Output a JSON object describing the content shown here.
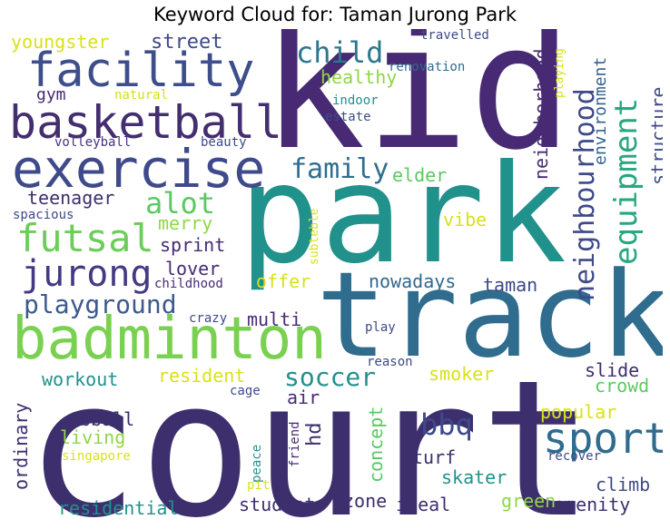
{
  "title": "Keyword Cloud for: Taman Jurong Park",
  "palette": {
    "dark_purple": "#472A73",
    "deep_indigo": "#3D2F6E",
    "slate_blue": "#3E4A89",
    "steel_blue": "#31688E",
    "teal": "#21918C",
    "sea_green": "#27A87F",
    "green": "#5CC863",
    "lime": "#8FD744",
    "yellow": "#D8E219"
  },
  "words": [
    {
      "text": "court",
      "color": "#3D2F6E"
    },
    {
      "text": "kid",
      "color": "#472A73"
    },
    {
      "text": "park",
      "color": "#21918C"
    },
    {
      "text": "track",
      "color": "#2F6C8E"
    },
    {
      "text": "badminton",
      "color": "#7AD151"
    },
    {
      "text": "exercise",
      "color": "#3E4A89"
    },
    {
      "text": "basketball",
      "color": "#432E6F"
    },
    {
      "text": "facility",
      "color": "#3D4E8A"
    },
    {
      "text": "sport",
      "color": "#2F6C8E"
    },
    {
      "text": "futsal",
      "color": "#6CCD5A"
    },
    {
      "text": "jurong",
      "color": "#443A83"
    },
    {
      "text": "equipment",
      "color": "#27A87F"
    },
    {
      "text": "neighbourhood",
      "color": "#3E4A89"
    },
    {
      "text": "playground",
      "color": "#3D5A8C"
    },
    {
      "text": "child",
      "color": "#2B788E"
    },
    {
      "text": "family",
      "color": "#2E6E8E"
    },
    {
      "text": "alot",
      "color": "#5CC863"
    },
    {
      "text": "soccer",
      "color": "#21918C"
    },
    {
      "text": "bbq",
      "color": "#3E4A89"
    },
    {
      "text": "youngster",
      "color": "#D8E219"
    },
    {
      "text": "street",
      "color": "#3E4A89"
    },
    {
      "text": "healthy",
      "color": "#8FD744"
    },
    {
      "text": "gym",
      "color": "#472A73"
    },
    {
      "text": "natural",
      "color": "#D2E21B"
    },
    {
      "text": "volleyball",
      "color": "#46337E"
    },
    {
      "text": "beauty",
      "color": "#3E4A89"
    },
    {
      "text": "indoor",
      "color": "#21918C"
    },
    {
      "text": "estate",
      "color": "#3D4E8A"
    },
    {
      "text": "travelled",
      "color": "#3E4A89"
    },
    {
      "text": "renovation",
      "color": "#2F6C8E"
    },
    {
      "text": "neighborhood",
      "color": "#472A73"
    },
    {
      "text": "playing",
      "color": "#D8E219"
    },
    {
      "text": "environment",
      "color": "#35608D"
    },
    {
      "text": "structure",
      "color": "#3E4A89"
    },
    {
      "text": "elder",
      "color": "#5CC863"
    },
    {
      "text": "teenager",
      "color": "#3D2F6E"
    },
    {
      "text": "spacious",
      "color": "#3E4A89"
    },
    {
      "text": "merry",
      "color": "#8FD744"
    },
    {
      "text": "subteble",
      "color": "#D8E219"
    },
    {
      "text": "vibe",
      "color": "#D8E219"
    },
    {
      "text": "sprint",
      "color": "#472A73"
    },
    {
      "text": "lover",
      "color": "#472A73"
    },
    {
      "text": "offer",
      "color": "#D8E219"
    },
    {
      "text": "childhood",
      "color": "#472A73"
    },
    {
      "text": "nowadays",
      "color": "#31688E"
    },
    {
      "text": "taman",
      "color": "#3E4A89"
    },
    {
      "text": "multi",
      "color": "#472A73"
    },
    {
      "text": "crazy",
      "color": "#3E4A89"
    },
    {
      "text": "play",
      "color": "#3E4A89"
    },
    {
      "text": "reason",
      "color": "#3E4A89"
    },
    {
      "text": "workout",
      "color": "#21918C"
    },
    {
      "text": "resident",
      "color": "#D8E219"
    },
    {
      "text": "smoker",
      "color": "#D8E219"
    },
    {
      "text": "slide",
      "color": "#3D2F6E"
    },
    {
      "text": "crowd",
      "color": "#5CC863"
    },
    {
      "text": "cage",
      "color": "#3E4A89"
    },
    {
      "text": "air",
      "color": "#472A73"
    },
    {
      "text": "hd",
      "color": "#3D2F6E"
    },
    {
      "text": "concept",
      "color": "#5CC863"
    },
    {
      "text": "popular",
      "color": "#D8E219"
    },
    {
      "text": "ordinary",
      "color": "#3D2F6E"
    },
    {
      "text": "bball",
      "color": "#3D2F6E"
    },
    {
      "text": "living",
      "color": "#8FD744"
    },
    {
      "text": "singapore",
      "color": "#D8E219"
    },
    {
      "text": "peace",
      "color": "#21918C"
    },
    {
      "text": "pit",
      "color": "#D8E219"
    },
    {
      "text": "friend",
      "color": "#472A73"
    },
    {
      "text": "turf",
      "color": "#3D2F6E"
    },
    {
      "text": "skater",
      "color": "#21918C"
    },
    {
      "text": "recover",
      "color": "#3E4A89"
    },
    {
      "text": "climb",
      "color": "#3E4A89"
    },
    {
      "text": "residential",
      "color": "#21918C"
    },
    {
      "text": "student",
      "color": "#3D2F6E"
    },
    {
      "text": "zone",
      "color": "#3D2F6E"
    },
    {
      "text": "ideal",
      "color": "#3D2F6E"
    },
    {
      "text": "green",
      "color": "#8FD744"
    },
    {
      "text": "amenity",
      "color": "#3D2F6E"
    }
  ]
}
